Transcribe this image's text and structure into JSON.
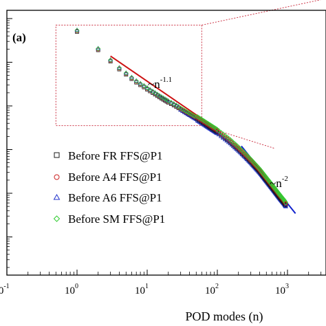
{
  "chart_data": {
    "type": "scatter",
    "panel_label": "(a)",
    "xlabel": "POD modes (n)",
    "ylabel": "",
    "xscale": "log",
    "yscale": "log",
    "xlim": [
      0.1,
      3000
    ],
    "ylim_decades": [
      -6,
      0
    ],
    "x_ticks": [
      {
        "base": "10",
        "exp": "-1",
        "value": 0.1
      },
      {
        "base": "10",
        "exp": "0",
        "value": 1
      },
      {
        "base": "10",
        "exp": "1",
        "value": 10
      },
      {
        "base": "10",
        "exp": "2",
        "value": 100
      },
      {
        "base": "10",
        "exp": "3",
        "value": 1000
      }
    ],
    "legend_position": "lower-left",
    "series": [
      {
        "name": "Before FR FFS@P1",
        "marker": "square",
        "color": "#1a1a1a"
      },
      {
        "name": "Before A4 FFS@P1",
        "marker": "circle",
        "color": "#cc2222"
      },
      {
        "name": "Before A6 FFS@P1",
        "marker": "triangle",
        "color": "#2233cc"
      },
      {
        "name": "Before SM FFS@P1",
        "marker": "diamond",
        "color": "#33cc33"
      }
    ],
    "fit_lines": [
      {
        "label_base": "~n",
        "label_exp": "-1.1",
        "slope": -1.1,
        "x_range": [
          3,
          100
        ],
        "color": "#cc1111"
      },
      {
        "label_base": "~n",
        "label_exp": "-2",
        "slope": -2,
        "x_range": [
          220,
          1300
        ],
        "color": "#1122cc"
      }
    ],
    "points_log": [
      [
        1,
        -0.3
      ],
      [
        2,
        -0.72
      ],
      [
        3,
        -0.98
      ],
      [
        4,
        -1.16
      ],
      [
        5,
        -1.28
      ],
      [
        6,
        -1.38
      ],
      [
        7,
        -1.46
      ],
      [
        8,
        -1.52
      ],
      [
        9,
        -1.57
      ],
      [
        10,
        -1.62
      ],
      [
        12,
        -1.7
      ],
      [
        15,
        -1.8
      ],
      [
        20,
        -1.92
      ],
      [
        25,
        -2.0
      ],
      [
        30,
        -2.08
      ],
      [
        40,
        -2.2
      ],
      [
        50,
        -2.29
      ],
      [
        60,
        -2.37
      ],
      [
        70,
        -2.44
      ],
      [
        80,
        -2.5
      ],
      [
        100,
        -2.6
      ],
      [
        120,
        -2.7
      ],
      [
        150,
        -2.82
      ],
      [
        200,
        -3.0
      ],
      [
        250,
        -3.15
      ],
      [
        300,
        -3.28
      ],
      [
        400,
        -3.5
      ],
      [
        500,
        -3.7
      ],
      [
        600,
        -3.86
      ],
      [
        700,
        -4.0
      ],
      [
        800,
        -4.12
      ],
      [
        900,
        -4.22
      ],
      [
        950,
        -4.28
      ]
    ],
    "zoom_box": {
      "x_range": [
        0.5,
        60
      ],
      "y_log_range": [
        -0.15,
        -2.45
      ]
    }
  }
}
